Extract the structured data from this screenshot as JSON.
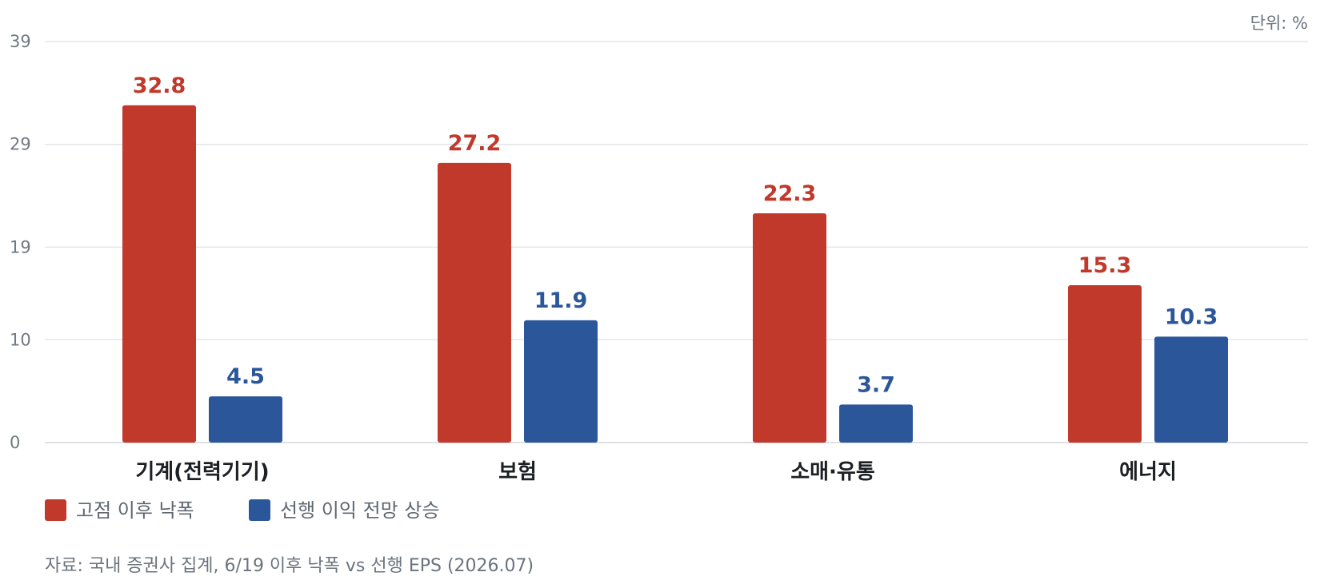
{
  "chart_data": {
    "type": "bar",
    "unit_label": "단위: %",
    "categories": [
      "기계(전력기기)",
      "보험",
      "소매·유통",
      "에너지"
    ],
    "series": [
      {
        "name": "고점 이후 낙폭",
        "values": [
          32.8,
          27.2,
          22.3,
          15.3
        ],
        "color": "#c0392b"
      },
      {
        "name": "선행 이익 전망 상승",
        "values": [
          4.5,
          11.9,
          3.7,
          10.3
        ],
        "color": "#2b579a"
      }
    ],
    "y_ticks": [
      0,
      10,
      19,
      29,
      39
    ],
    "ylim": [
      0,
      39
    ],
    "grid": true,
    "legend_position": "bottom-left",
    "source": "자료: 국내 증권사 집계, 6/19 이후 낙폭 vs 선행 EPS (2026.07)"
  }
}
